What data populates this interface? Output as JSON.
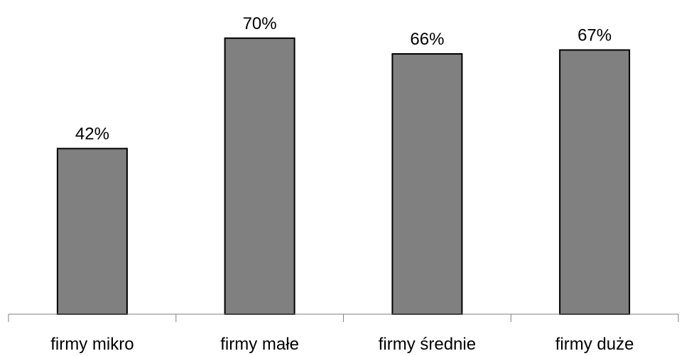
{
  "chart_data": {
    "type": "bar",
    "title": "",
    "xlabel": "",
    "ylabel": "",
    "categories": [
      "firmy mikro",
      "firmy małe",
      "firmy średnie",
      "firmy duże"
    ],
    "values": [
      42,
      70,
      66,
      67
    ],
    "data_labels": [
      "42%",
      "70%",
      "66%",
      "67%"
    ],
    "ylim": [
      0,
      80
    ],
    "grid": false,
    "legend": "none",
    "colors": {
      "bar_fill": "#808080",
      "bar_stroke": "#000000",
      "axis": "#808080",
      "text": "#000000"
    }
  }
}
